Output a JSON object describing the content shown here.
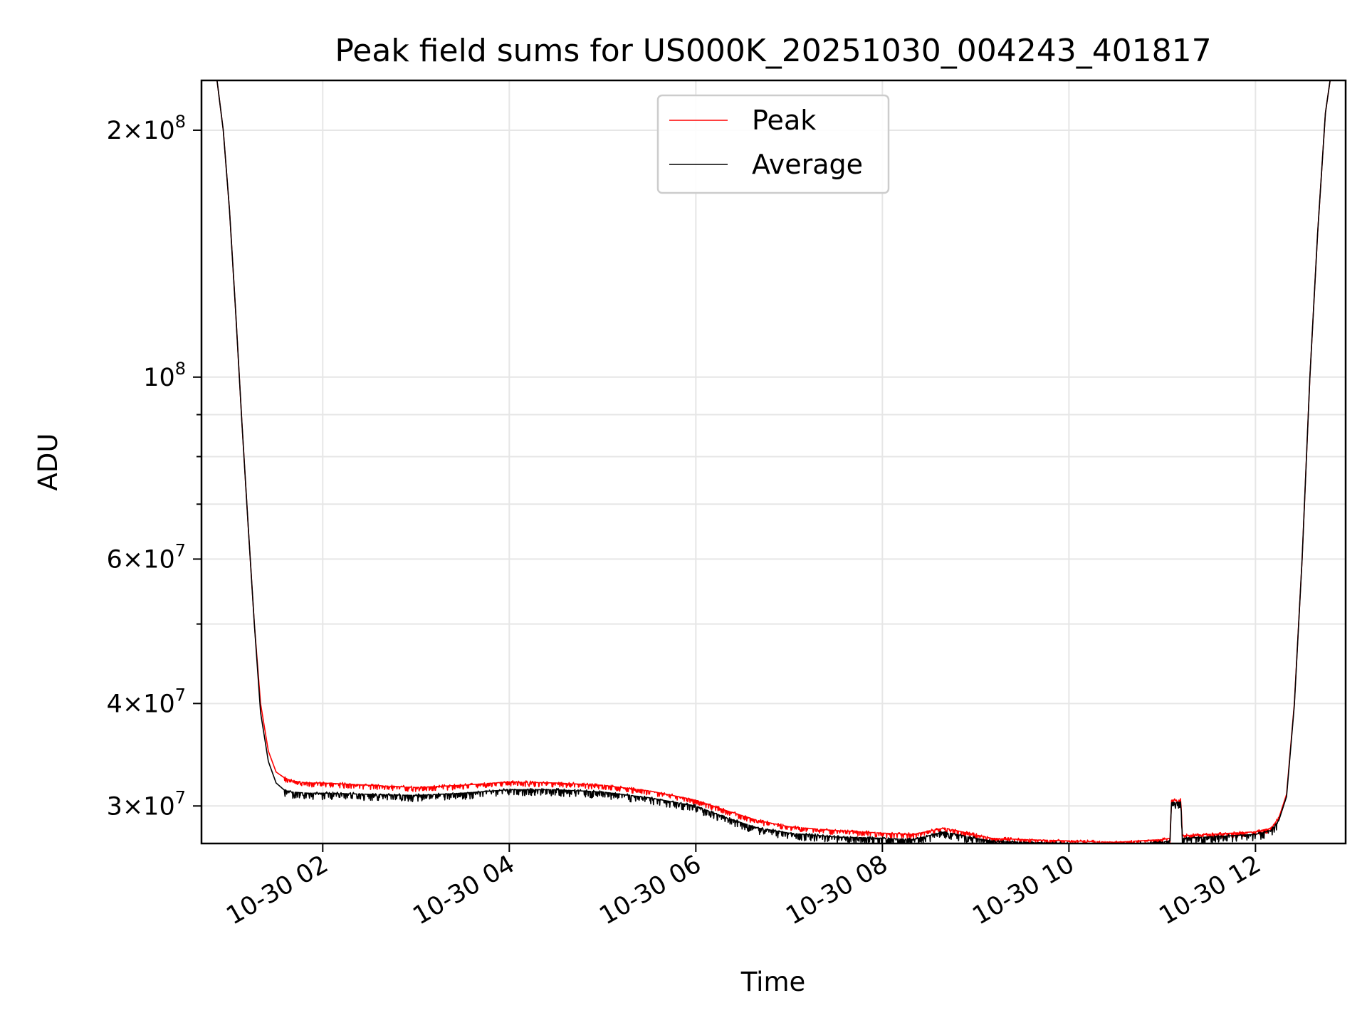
{
  "chart_data": {
    "type": "line",
    "title": "Peak field sums for US000K_20251030_004243_401817",
    "xlabel": "Time",
    "ylabel": "ADU",
    "yscale": "log",
    "xlim": [
      "2025-10-30 00:42",
      "2025-10-30 12:58"
    ],
    "ylim": [
      27000000,
      230000000
    ],
    "grid": true,
    "legend_position": "upper center",
    "x_ticks": [
      {
        "value": "2025-10-30 02:00",
        "label": "10-30 02"
      },
      {
        "value": "2025-10-30 04:00",
        "label": "10-30 04"
      },
      {
        "value": "2025-10-30 06:00",
        "label": "10-30 06"
      },
      {
        "value": "2025-10-30 08:00",
        "label": "10-30 08"
      },
      {
        "value": "2025-10-30 10:00",
        "label": "10-30 10"
      },
      {
        "value": "2025-10-30 12:00",
        "label": "10-30 12"
      }
    ],
    "y_ticks": [
      {
        "value": 200000000,
        "mantissa": "2",
        "exponent": "8"
      },
      {
        "value": 100000000,
        "mantissa": "",
        "exponent": "8"
      },
      {
        "value": 60000000,
        "mantissa": "6",
        "exponent": "7"
      },
      {
        "value": 40000000,
        "mantissa": "4",
        "exponent": "7"
      },
      {
        "value": 30000000,
        "mantissa": "3",
        "exponent": "7"
      }
    ],
    "y_minor_ticks": [
      50000000,
      70000000,
      80000000,
      90000000
    ],
    "x": [
      "2025-10-30 00:52",
      "2025-10-30 00:56",
      "2025-10-30 01:00",
      "2025-10-30 01:04",
      "2025-10-30 01:08",
      "2025-10-30 01:12",
      "2025-10-30 01:16",
      "2025-10-30 01:20",
      "2025-10-30 01:25",
      "2025-10-30 01:30",
      "2025-10-30 01:35",
      "2025-10-30 01:40",
      "2025-10-30 01:50",
      "2025-10-30 02:00",
      "2025-10-30 02:30",
      "2025-10-30 03:00",
      "2025-10-30 03:30",
      "2025-10-30 04:00",
      "2025-10-30 04:30",
      "2025-10-30 05:00",
      "2025-10-30 05:30",
      "2025-10-30 06:00",
      "2025-10-30 06:20",
      "2025-10-30 06:40",
      "2025-10-30 07:00",
      "2025-10-30 07:30",
      "2025-10-30 08:00",
      "2025-10-30 08:20",
      "2025-10-30 08:40",
      "2025-10-30 08:55",
      "2025-10-30 09:10",
      "2025-10-30 09:30",
      "2025-10-30 10:00",
      "2025-10-30 10:30",
      "2025-10-30 11:00",
      "2025-10-30 11:05",
      "2025-10-30 11:06",
      "2025-10-30 11:12",
      "2025-10-30 11:13",
      "2025-10-30 11:30",
      "2025-10-30 12:00",
      "2025-10-30 12:10",
      "2025-10-30 12:15",
      "2025-10-30 12:20",
      "2025-10-30 12:25",
      "2025-10-30 12:30",
      "2025-10-30 12:35",
      "2025-10-30 12:40",
      "2025-10-30 12:45",
      "2025-10-30 12:48"
    ],
    "series": [
      {
        "name": "Peak",
        "color": "#ff0000",
        "values": [
          230000000,
          200000000,
          160000000,
          120000000,
          88000000,
          66000000,
          50000000,
          40000000,
          35000000,
          33000000,
          32500000,
          32200000,
          32000000,
          32000000,
          31800000,
          31600000,
          31800000,
          32100000,
          32000000,
          31800000,
          31300000,
          30500000,
          29600000,
          28800000,
          28300000,
          28000000,
          27800000,
          27700000,
          28200000,
          27800000,
          27400000,
          27300000,
          27200000,
          27100000,
          27300000,
          27400000,
          30500000,
          30500000,
          27600000,
          27700000,
          27900000,
          28200000,
          29000000,
          31000000,
          40000000,
          60000000,
          100000000,
          150000000,
          210000000,
          230000000
        ]
      },
      {
        "name": "Average",
        "color": "#000000",
        "values": [
          230000000,
          200000000,
          160000000,
          120000000,
          88000000,
          66000000,
          50000000,
          39000000,
          34000000,
          32000000,
          31400000,
          31200000,
          31100000,
          31100000,
          31000000,
          30900000,
          31100000,
          31400000,
          31400000,
          31200000,
          30700000,
          30000000,
          29000000,
          28200000,
          27800000,
          27500000,
          27400000,
          27300000,
          27900000,
          27500000,
          27200000,
          27100000,
          27000000,
          26900000,
          27100000,
          27200000,
          30300000,
          30300000,
          27400000,
          27500000,
          27700000,
          28000000,
          28800000,
          30800000,
          39800000,
          60000000,
          100000000,
          150000000,
          210000000,
          230000000
        ]
      }
    ]
  }
}
